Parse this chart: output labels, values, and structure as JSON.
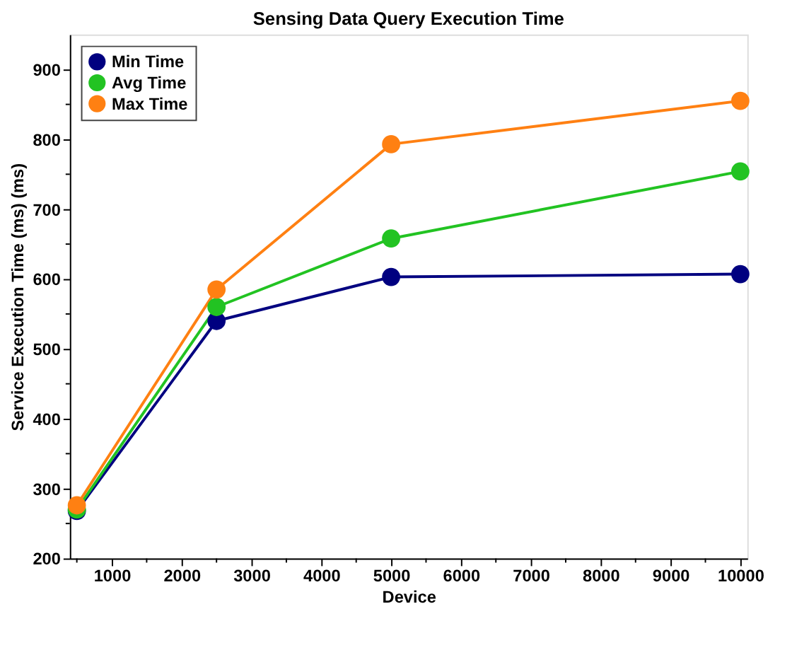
{
  "chart_data": {
    "type": "line",
    "title": "Sensing Data Query Execution Time",
    "xlabel": "Device",
    "ylabel": "Service Execution Time (ms) (ms)",
    "x": [
      500,
      2500,
      5000,
      10000
    ],
    "series": [
      {
        "name": "Min Time",
        "color": "#000080",
        "values": [
          268,
          540,
          603,
          607
        ]
      },
      {
        "name": "Avg Time",
        "color": "#22c322",
        "values": [
          270,
          560,
          658,
          754
        ]
      },
      {
        "name": "Max Time",
        "color": "#ff8012",
        "values": [
          276,
          585,
          793,
          855
        ]
      }
    ],
    "xlim": [
      400,
      10100
    ],
    "xticks": [
      {
        "value": 500,
        "label": null
      },
      1000,
      {
        "value": 1500,
        "label": null
      },
      2000,
      {
        "value": 2500,
        "label": null
      },
      3000,
      {
        "value": 3500,
        "label": null
      },
      4000,
      {
        "value": 4500,
        "label": null
      },
      5000,
      {
        "value": 5500,
        "label": null
      },
      6000,
      {
        "value": 6500,
        "label": null
      },
      7000,
      {
        "value": 7500,
        "label": null
      },
      8000,
      {
        "value": 8500,
        "label": null
      },
      9000,
      {
        "value": 9500,
        "label": null
      },
      10000
    ],
    "ylim": [
      200,
      950
    ],
    "yticks": [
      200,
      {
        "value": 250,
        "label": null
      },
      300,
      {
        "value": 350,
        "label": null
      },
      400,
      {
        "value": 450,
        "label": null
      },
      500,
      {
        "value": 550,
        "label": null
      },
      600,
      {
        "value": 650,
        "label": null
      },
      700,
      {
        "value": 750,
        "label": null
      },
      800,
      {
        "value": 850,
        "label": null
      },
      900
    ],
    "grid": false,
    "legend": "top left",
    "marker": "circle",
    "line_style": "solid"
  }
}
